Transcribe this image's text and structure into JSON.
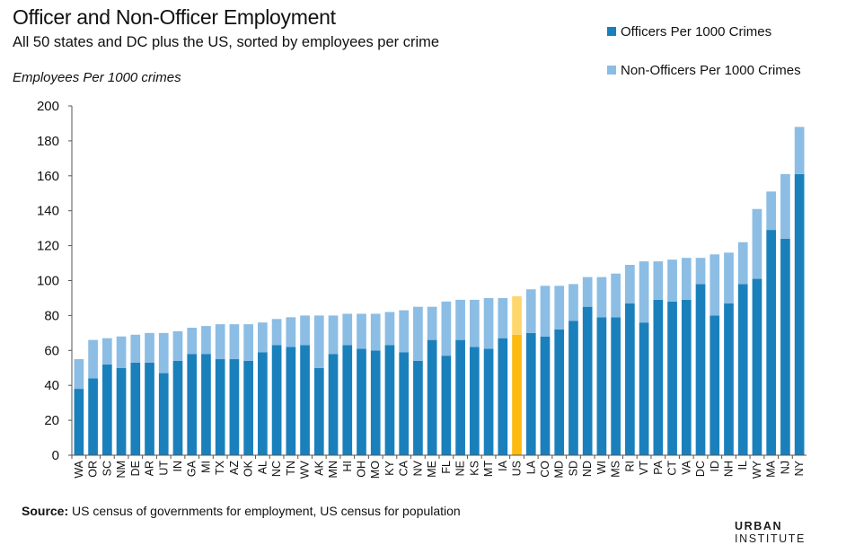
{
  "header": {
    "title": "Officer and Non-Officer Employment",
    "subtitle": "All 50 states and DC plus the US, sorted by employees per crime",
    "y_axis_label": "Employees Per 1000 crimes"
  },
  "legend": {
    "officers_label": "Officers Per 1000 Crimes",
    "nonofficers_label": "Non-Officers Per 1000 Crimes"
  },
  "footer": {
    "source_label": "Source:",
    "source_text": " US census of governments for employment, US census for population",
    "logo_brand": "URBAN",
    "logo_rest": " INSTITUTE"
  },
  "colors": {
    "officers": "#1a80bc",
    "nonofficers": "#8cbde4",
    "us_officers": "#fdbb11",
    "us_nonofficers": "#fed66e",
    "axis": "#555555"
  },
  "chart_data": {
    "type": "bar",
    "stacked": true,
    "ylim": [
      0,
      200
    ],
    "yticks": [
      0,
      20,
      40,
      60,
      80,
      100,
      120,
      140,
      160,
      180,
      200
    ],
    "grid": false,
    "legend_position": "top-right",
    "highlight_category": "US",
    "categories": [
      "WA",
      "OR",
      "SC",
      "NM",
      "DE",
      "AR",
      "UT",
      "IN",
      "GA",
      "MI",
      "TX",
      "AZ",
      "OK",
      "AL",
      "NC",
      "TN",
      "WV",
      "AK",
      "MN",
      "HI",
      "OH",
      "MO",
      "KY",
      "CA",
      "NV",
      "ME",
      "FL",
      "NE",
      "KS",
      "MT",
      "IA",
      "US",
      "LA",
      "CO",
      "MD",
      "SD",
      "ND",
      "WI",
      "MS",
      "RI",
      "VT",
      "PA",
      "CT",
      "VA",
      "DC",
      "ID",
      "NH",
      "IL",
      "WY",
      "MA",
      "NJ",
      "NY"
    ],
    "series": [
      {
        "name": "Officers Per 1000 Crimes",
        "values": [
          38,
          44,
          52,
          50,
          53,
          53,
          47,
          54,
          58,
          58,
          55,
          55,
          54,
          59,
          63,
          62,
          63,
          50,
          58,
          63,
          61,
          60,
          63,
          59,
          54,
          66,
          57,
          66,
          62,
          61,
          67,
          69,
          70,
          68,
          72,
          77,
          85,
          79,
          79,
          87,
          76,
          89,
          88,
          89,
          98,
          80,
          87,
          98,
          101,
          129,
          124,
          161
        ]
      },
      {
        "name": "Non-Officers Per 1000 Crimes",
        "values": [
          17,
          22,
          15,
          18,
          16,
          17,
          23,
          17,
          15,
          16,
          20,
          20,
          21,
          17,
          15,
          17,
          17,
          30,
          22,
          18,
          20,
          21,
          19,
          24,
          31,
          19,
          31,
          23,
          27,
          29,
          23,
          22,
          25,
          29,
          25,
          21,
          17,
          23,
          25,
          22,
          35,
          22,
          24,
          24,
          15,
          35,
          29,
          24,
          40,
          22,
          37,
          27
        ]
      }
    ]
  }
}
